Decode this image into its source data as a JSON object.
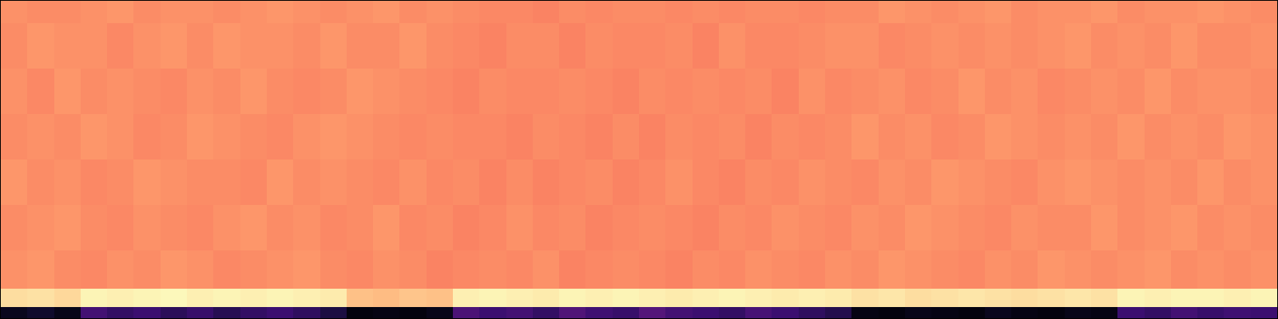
{
  "chart_data": {
    "type": "heatmap",
    "color": "magma",
    "tick_labels": false,
    "grid": false,
    "xlim": [
      0,
      48
    ],
    "ylim": [
      0,
      28
    ],
    "zlim": [
      0,
      1
    ],
    "x_edges": [
      0,
      1,
      2,
      3,
      4,
      5,
      6,
      7,
      8,
      9,
      10,
      11,
      12,
      13,
      14,
      15,
      16,
      17,
      18,
      19,
      20,
      21,
      22,
      23,
      24,
      25,
      26,
      27,
      28,
      29,
      30,
      31,
      32,
      33,
      34,
      35,
      36,
      37,
      38,
      39,
      40,
      41,
      42,
      43,
      44,
      45,
      46,
      47,
      48
    ],
    "y_edges": [
      0,
      1,
      2.6,
      6,
      10,
      14,
      18,
      22,
      26,
      28
    ],
    "cells": [
      [
        0.05,
        0.08,
        0.04,
        0.22,
        0.18,
        0.2,
        0.16,
        0.19,
        0.15,
        0.18,
        0.2,
        0.17,
        0.12,
        0.02,
        0.03,
        0.02,
        0.04,
        0.24,
        0.2,
        0.22,
        0.18,
        0.25,
        0.21,
        0.19,
        0.26,
        0.22,
        0.2,
        0.18,
        0.23,
        0.2,
        0.17,
        0.14,
        0.03,
        0.02,
        0.04,
        0.03,
        0.02,
        0.05,
        0.03,
        0.02,
        0.04,
        0.03,
        0.2,
        0.18,
        0.22,
        0.19,
        0.21,
        0.2
      ],
      [
        0.93,
        0.94,
        0.92,
        0.98,
        0.97,
        0.98,
        0.99,
        0.97,
        0.98,
        0.97,
        0.98,
        0.97,
        0.96,
        0.87,
        0.86,
        0.88,
        0.87,
        0.97,
        0.98,
        0.97,
        0.96,
        0.98,
        0.97,
        0.98,
        0.97,
        0.96,
        0.97,
        0.98,
        0.97,
        0.96,
        0.97,
        0.96,
        0.94,
        0.95,
        0.93,
        0.94,
        0.95,
        0.94,
        0.93,
        0.94,
        0.95,
        0.94,
        0.98,
        0.97,
        0.98,
        0.98,
        0.97,
        0.98
      ],
      [
        0.77,
        0.78,
        0.76,
        0.75,
        0.77,
        0.76,
        0.78,
        0.77,
        0.75,
        0.76,
        0.77,
        0.78,
        0.76,
        0.75,
        0.77,
        0.76,
        0.74,
        0.75,
        0.76,
        0.75,
        0.77,
        0.74,
        0.75,
        0.76,
        0.75,
        0.74,
        0.76,
        0.75,
        0.77,
        0.76,
        0.75,
        0.77,
        0.76,
        0.78,
        0.77,
        0.76,
        0.75,
        0.77,
        0.76,
        0.78,
        0.77,
        0.76,
        0.77,
        0.78,
        0.76,
        0.77,
        0.76,
        0.77
      ],
      [
        0.76,
        0.77,
        0.78,
        0.76,
        0.75,
        0.77,
        0.76,
        0.75,
        0.77,
        0.78,
        0.76,
        0.77,
        0.75,
        0.76,
        0.78,
        0.75,
        0.76,
        0.74,
        0.75,
        0.77,
        0.75,
        0.76,
        0.74,
        0.75,
        0.76,
        0.75,
        0.74,
        0.76,
        0.75,
        0.77,
        0.76,
        0.75,
        0.77,
        0.76,
        0.78,
        0.77,
        0.76,
        0.75,
        0.77,
        0.76,
        0.76,
        0.78,
        0.76,
        0.77,
        0.78,
        0.76,
        0.77,
        0.76
      ],
      [
        0.78,
        0.76,
        0.77,
        0.75,
        0.76,
        0.78,
        0.77,
        0.76,
        0.76,
        0.75,
        0.78,
        0.76,
        0.77,
        0.76,
        0.75,
        0.77,
        0.75,
        0.76,
        0.74,
        0.76,
        0.74,
        0.75,
        0.76,
        0.74,
        0.75,
        0.77,
        0.75,
        0.74,
        0.76,
        0.75,
        0.77,
        0.76,
        0.75,
        0.77,
        0.76,
        0.78,
        0.77,
        0.76,
        0.75,
        0.77,
        0.78,
        0.77,
        0.76,
        0.77,
        0.76,
        0.78,
        0.76,
        0.77
      ],
      [
        0.76,
        0.77,
        0.76,
        0.78,
        0.77,
        0.75,
        0.76,
        0.78,
        0.77,
        0.76,
        0.75,
        0.77,
        0.78,
        0.77,
        0.76,
        0.75,
        0.76,
        0.75,
        0.75,
        0.74,
        0.76,
        0.75,
        0.74,
        0.76,
        0.74,
        0.76,
        0.75,
        0.76,
        0.74,
        0.76,
        0.75,
        0.76,
        0.78,
        0.76,
        0.77,
        0.75,
        0.76,
        0.78,
        0.77,
        0.76,
        0.77,
        0.76,
        0.78,
        0.76,
        0.77,
        0.76,
        0.78,
        0.77
      ],
      [
        0.77,
        0.75,
        0.78,
        0.76,
        0.77,
        0.76,
        0.75,
        0.77,
        0.76,
        0.78,
        0.76,
        0.75,
        0.76,
        0.78,
        0.77,
        0.76,
        0.75,
        0.74,
        0.76,
        0.75,
        0.75,
        0.76,
        0.75,
        0.74,
        0.76,
        0.75,
        0.76,
        0.75,
        0.76,
        0.74,
        0.77,
        0.75,
        0.76,
        0.77,
        0.75,
        0.76,
        0.78,
        0.76,
        0.77,
        0.75,
        0.76,
        0.77,
        0.76,
        0.78,
        0.76,
        0.77,
        0.77,
        0.76
      ],
      [
        0.76,
        0.78,
        0.77,
        0.77,
        0.75,
        0.77,
        0.78,
        0.76,
        0.78,
        0.77,
        0.77,
        0.76,
        0.78,
        0.76,
        0.76,
        0.78,
        0.76,
        0.75,
        0.74,
        0.76,
        0.76,
        0.74,
        0.76,
        0.75,
        0.75,
        0.76,
        0.74,
        0.77,
        0.75,
        0.75,
        0.76,
        0.77,
        0.77,
        0.75,
        0.76,
        0.77,
        0.76,
        0.77,
        0.76,
        0.77,
        0.78,
        0.76,
        0.77,
        0.76,
        0.78,
        0.76,
        0.76,
        0.77
      ],
      [
        0.77,
        0.76,
        0.76,
        0.77,
        0.78,
        0.76,
        0.77,
        0.77,
        0.76,
        0.77,
        0.78,
        0.77,
        0.76,
        0.77,
        0.78,
        0.76,
        0.77,
        0.76,
        0.75,
        0.75,
        0.74,
        0.76,
        0.75,
        0.76,
        0.76,
        0.75,
        0.76,
        0.75,
        0.76,
        0.76,
        0.75,
        0.76,
        0.76,
        0.78,
        0.77,
        0.76,
        0.77,
        0.78,
        0.76,
        0.77,
        0.77,
        0.78,
        0.76,
        0.77,
        0.77,
        0.78,
        0.77,
        0.76
      ]
    ]
  }
}
